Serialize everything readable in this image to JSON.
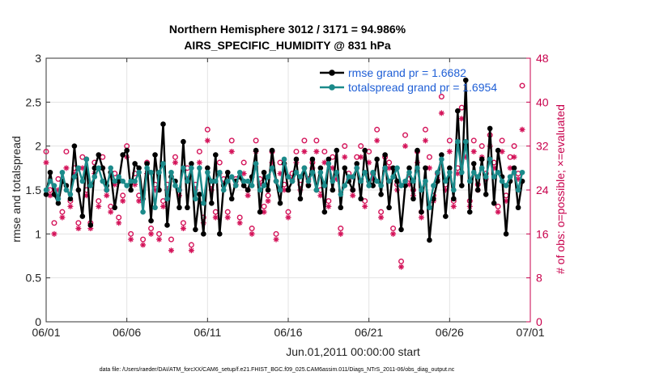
{
  "chart_data": {
    "type": "line",
    "title": "Northern Hemisphere 3012 / 3171 = 94.986%",
    "subtitle": "AIRS_SPECIFIC_HUMIDITY @ 831 hPa",
    "xlabel": "Jun.01,2011 00:00:00 start",
    "ylabel": "rmse and totalspread",
    "y2label": "# of obs: o=possible; ×=evaluated",
    "footer": "data file: /Users/raeder/DAI/ATM_forcXX/CAM6_setup/f.e21.FHIST_BGC.f09_025.CAM6assim.011/Diags_NTrS_2011-06/obs_diag_output.nc",
    "xlim": [
      0,
      30
    ],
    "ylim": [
      0,
      3
    ],
    "y2lim": [
      0,
      48
    ],
    "x_ticks": [
      0,
      5,
      10,
      15,
      20,
      25,
      30
    ],
    "x_tick_labels": [
      "06/01",
      "06/06",
      "06/11",
      "06/16",
      "06/21",
      "06/26",
      "07/01"
    ],
    "y_ticks": [
      0,
      0.5,
      1,
      1.5,
      2,
      2.5,
      3
    ],
    "y_tick_labels": [
      "0",
      "0.5",
      "1",
      "1.5",
      "2",
      "2.5",
      "3"
    ],
    "y2_ticks": [
      0,
      8,
      16,
      24,
      32,
      40,
      48
    ],
    "y2_tick_labels": [
      "0",
      "8",
      "16",
      "24",
      "32",
      "40",
      "48"
    ],
    "grid": true,
    "legend_position": "top-right",
    "colors": {
      "rmse": "#000000",
      "totalspread": "#1b8a8a",
      "obs": "#d4145a",
      "legend_text": "#1f5fd6",
      "right_axis": "#c8004c"
    },
    "series": [
      {
        "name": "rmse grand pr = 1.6682",
        "color": "#000000",
        "x": [
          0.0,
          0.25,
          0.5,
          0.75,
          1.0,
          1.25,
          1.5,
          1.75,
          2.0,
          2.25,
          2.5,
          2.75,
          3.0,
          3.25,
          3.5,
          3.75,
          4.0,
          4.25,
          4.5,
          4.75,
          5.0,
          5.25,
          5.5,
          5.75,
          6.0,
          6.25,
          6.5,
          6.75,
          7.0,
          7.25,
          7.5,
          7.75,
          8.0,
          8.25,
          8.5,
          8.75,
          9.0,
          9.25,
          9.5,
          9.75,
          10.0,
          10.25,
          10.5,
          10.75,
          11.0,
          11.25,
          11.5,
          11.75,
          12.0,
          12.25,
          12.5,
          12.75,
          13.0,
          13.25,
          13.5,
          13.75,
          14.0,
          14.25,
          14.5,
          14.75,
          15.0,
          15.25,
          15.5,
          15.75,
          16.0,
          16.25,
          16.5,
          16.75,
          17.0,
          17.25,
          17.5,
          17.75,
          18.0,
          18.25,
          18.5,
          18.75,
          19.0,
          19.25,
          19.5,
          19.75,
          20.0,
          20.25,
          20.5,
          20.75,
          21.0,
          21.25,
          21.5,
          21.75,
          22.0,
          22.25,
          22.5,
          22.75,
          23.0,
          23.25,
          23.5,
          23.75,
          24.0,
          24.25,
          24.5,
          24.75,
          25.0,
          25.25,
          25.5,
          25.75,
          26.0,
          26.25,
          26.5,
          26.75,
          27.0,
          27.25,
          27.5,
          27.75,
          28.0,
          28.25,
          28.5,
          28.75,
          29.0,
          29.25,
          29.5
        ],
        "values": [
          1.45,
          1.7,
          1.45,
          1.35,
          1.6,
          1.55,
          1.4,
          2.0,
          1.5,
          1.2,
          1.85,
          1.1,
          1.75,
          1.9,
          1.75,
          1.55,
          1.7,
          1.3,
          1.6,
          1.9,
          1.95,
          1.5,
          1.8,
          1.75,
          1.4,
          1.8,
          1.15,
          1.9,
          1.5,
          2.25,
          1.1,
          1.65,
          1.6,
          1.3,
          2.05,
          1.3,
          1.8,
          1.05,
          1.45,
          1.0,
          1.75,
          1.35,
          1.9,
          1.0,
          1.55,
          1.7,
          1.4,
          1.6,
          1.65,
          1.55,
          1.5,
          1.65,
          1.95,
          1.25,
          1.7,
          1.5,
          1.95,
          1.6,
          1.35,
          1.8,
          1.5,
          1.6,
          1.85,
          1.4,
          1.75,
          1.55,
          1.85,
          1.5,
          1.75,
          1.25,
          1.85,
          1.5,
          1.95,
          1.3,
          1.75,
          1.6,
          1.5,
          1.8,
          1.4,
          1.95,
          1.6,
          1.55,
          1.85,
          1.45,
          1.9,
          1.3,
          1.75,
          1.6,
          1.05,
          1.55,
          1.75,
          1.4,
          1.95,
          1.25,
          1.75,
          0.93,
          1.4,
          1.6,
          1.9,
          1.2,
          1.75,
          1.4,
          2.4,
          1.55,
          2.75,
          1.25,
          1.8,
          1.5,
          1.85,
          1.45,
          2.2,
          1.35,
          1.95,
          1.65,
          1.0,
          1.6,
          1.75,
          1.3,
          1.6
        ]
      },
      {
        "name": "totalspread grand pr = 1.6954",
        "color": "#1b8a8a",
        "x": [
          0.0,
          0.25,
          0.5,
          0.75,
          1.0,
          1.25,
          1.5,
          1.75,
          2.0,
          2.25,
          2.5,
          2.75,
          3.0,
          3.25,
          3.5,
          3.75,
          4.0,
          4.25,
          4.5,
          4.75,
          5.0,
          5.25,
          5.5,
          5.75,
          6.0,
          6.25,
          6.5,
          6.75,
          7.0,
          7.25,
          7.5,
          7.75,
          8.0,
          8.25,
          8.5,
          8.75,
          9.0,
          9.25,
          9.5,
          9.75,
          10.0,
          10.25,
          10.5,
          10.75,
          11.0,
          11.25,
          11.5,
          11.75,
          12.0,
          12.25,
          12.5,
          12.75,
          13.0,
          13.25,
          13.5,
          13.75,
          14.0,
          14.25,
          14.5,
          14.75,
          15.0,
          15.25,
          15.5,
          15.75,
          16.0,
          16.25,
          16.5,
          16.75,
          17.0,
          17.25,
          17.5,
          17.75,
          18.0,
          18.25,
          18.5,
          18.75,
          19.0,
          19.25,
          19.5,
          19.75,
          20.0,
          20.25,
          20.5,
          20.75,
          21.0,
          21.25,
          21.5,
          21.75,
          22.0,
          22.25,
          22.5,
          22.75,
          23.0,
          23.25,
          23.5,
          23.75,
          24.0,
          24.25,
          24.5,
          24.75,
          25.0,
          25.25,
          25.5,
          25.75,
          26.0,
          26.25,
          26.5,
          26.75,
          27.0,
          27.25,
          27.5,
          27.75,
          28.0,
          28.25,
          28.5,
          28.75,
          29.0,
          29.25,
          29.5
        ],
        "values": [
          1.5,
          1.6,
          1.55,
          1.4,
          1.7,
          1.5,
          1.45,
          1.65,
          1.75,
          1.6,
          1.85,
          1.55,
          1.65,
          1.75,
          1.6,
          1.5,
          1.75,
          1.6,
          1.65,
          1.6,
          1.55,
          1.6,
          1.6,
          1.7,
          1.25,
          1.75,
          1.7,
          1.3,
          1.7,
          1.8,
          1.4,
          1.7,
          1.55,
          1.5,
          1.75,
          1.6,
          1.75,
          1.4,
          1.75,
          1.35,
          1.7,
          1.6,
          1.6,
          1.7,
          1.5,
          1.6,
          1.65,
          1.55,
          1.7,
          1.6,
          1.6,
          1.55,
          1.8,
          1.5,
          1.55,
          1.65,
          1.75,
          1.6,
          1.5,
          1.85,
          1.65,
          1.6,
          1.7,
          1.65,
          1.75,
          1.6,
          1.7,
          1.5,
          1.7,
          1.55,
          1.8,
          1.6,
          1.7,
          1.45,
          1.55,
          1.65,
          1.65,
          1.75,
          1.6,
          1.7,
          1.55,
          1.7,
          1.6,
          1.55,
          1.75,
          1.6,
          1.65,
          1.75,
          1.55,
          1.6,
          1.7,
          1.6,
          1.75,
          1.5,
          1.6,
          1.3,
          1.55,
          1.7,
          1.85,
          1.6,
          1.7,
          1.5,
          2.05,
          1.7,
          2.05,
          1.6,
          1.7,
          1.65,
          1.75,
          1.65,
          1.85,
          1.65,
          1.7,
          1.6,
          1.55,
          1.65,
          1.7,
          1.5,
          1.7
        ]
      }
    ],
    "obs_possible": {
      "name": "# of obs possible",
      "marker": "circle",
      "x": [
        0.0,
        0.25,
        0.5,
        0.75,
        1.0,
        1.25,
        1.5,
        1.75,
        2.0,
        2.25,
        2.5,
        2.75,
        3.0,
        3.25,
        3.5,
        3.75,
        4.0,
        4.25,
        4.5,
        4.75,
        5.0,
        5.25,
        5.5,
        5.75,
        6.0,
        6.25,
        6.5,
        6.75,
        7.0,
        7.25,
        7.5,
        7.75,
        8.0,
        8.25,
        8.5,
        8.75,
        9.0,
        9.25,
        9.5,
        9.75,
        10.0,
        10.25,
        10.5,
        10.75,
        11.0,
        11.25,
        11.5,
        11.75,
        12.0,
        12.25,
        12.5,
        12.75,
        13.0,
        13.25,
        13.5,
        13.75,
        14.0,
        14.25,
        14.5,
        14.75,
        15.0,
        15.25,
        15.5,
        15.75,
        16.0,
        16.25,
        16.5,
        16.75,
        17.0,
        17.25,
        17.5,
        17.75,
        18.0,
        18.25,
        18.5,
        18.75,
        19.0,
        19.25,
        19.5,
        19.75,
        20.0,
        20.25,
        20.5,
        20.75,
        21.0,
        21.25,
        21.5,
        21.75,
        22.0,
        22.25,
        22.5,
        22.75,
        23.0,
        23.25,
        23.5,
        23.75,
        24.0,
        24.25,
        24.5,
        24.75,
        25.0,
        25.25,
        25.5,
        25.75,
        26.0,
        26.25,
        26.5,
        26.75,
        27.0,
        27.25,
        27.5,
        27.75,
        28.0,
        28.25,
        28.5,
        28.75,
        29.0,
        29.25,
        29.5
      ],
      "values": [
        31,
        24,
        18,
        26,
        20,
        31,
        22,
        28,
        18,
        30,
        24,
        18,
        29,
        22,
        30,
        24,
        21,
        27,
        19,
        23,
        32,
        16,
        27,
        23,
        15,
        29,
        17,
        25,
        16,
        22,
        25,
        15,
        30,
        24,
        18,
        28,
        14,
        25,
        31,
        19,
        35,
        25,
        20,
        29,
        26,
        20,
        33,
        26,
        19,
        29,
        24,
        17,
        33,
        26,
        21,
        23,
        31,
        16,
        29,
        25,
        20,
        27,
        31,
        25,
        33,
        26,
        29,
        33,
        24,
        31,
        22,
        30,
        27,
        17,
        32,
        27,
        24,
        30,
        32,
        22,
        31,
        27,
        35,
        20,
        30,
        29,
        17,
        25,
        11,
        34,
        26,
        24,
        31,
        20,
        35,
        30,
        23,
        27,
        41,
        25,
        33,
        22,
        28,
        39,
        32,
        22,
        33,
        25,
        32,
        27,
        34,
        29,
        21,
        33,
        23,
        30,
        32,
        27,
        43
      ]
    },
    "obs_evaluated": {
      "name": "# of obs evaluated",
      "marker": "asterisk",
      "x": [
        0.0,
        0.25,
        0.5,
        0.75,
        1.0,
        1.25,
        1.5,
        1.75,
        2.0,
        2.25,
        2.5,
        2.75,
        3.0,
        3.25,
        3.5,
        3.75,
        4.0,
        4.25,
        4.5,
        4.75,
        5.0,
        5.25,
        5.5,
        5.75,
        6.0,
        6.25,
        6.5,
        6.75,
        7.0,
        7.25,
        7.5,
        7.75,
        8.0,
        8.25,
        8.5,
        8.75,
        9.0,
        9.25,
        9.5,
        9.75,
        10.0,
        10.25,
        10.5,
        10.75,
        11.0,
        11.25,
        11.5,
        11.75,
        12.0,
        12.25,
        12.5,
        12.75,
        13.0,
        13.25,
        13.5,
        13.75,
        14.0,
        14.25,
        14.5,
        14.75,
        15.0,
        15.25,
        15.5,
        15.75,
        16.0,
        16.25,
        16.5,
        16.75,
        17.0,
        17.25,
        17.5,
        17.75,
        18.0,
        18.25,
        18.5,
        18.75,
        19.0,
        19.25,
        19.5,
        19.75,
        20.0,
        20.25,
        20.5,
        20.75,
        21.0,
        21.25,
        21.5,
        21.75,
        22.0,
        22.25,
        22.5,
        22.75,
        23.0,
        23.25,
        23.5,
        23.75,
        24.0,
        24.25,
        24.5,
        24.75,
        25.0,
        25.25,
        25.5,
        25.75,
        26.0,
        26.25,
        26.5,
        26.75,
        27.0,
        27.25,
        27.5,
        27.75,
        28.0,
        28.25,
        28.5,
        28.75,
        29.0,
        29.25,
        29.5
      ],
      "values": [
        29,
        23,
        16,
        24,
        19,
        28,
        21,
        27,
        17,
        28,
        23,
        17,
        27,
        21,
        28,
        23,
        20,
        25,
        18,
        22,
        30,
        15,
        25,
        22,
        14,
        27,
        16,
        24,
        15,
        21,
        24,
        13,
        29,
        23,
        17,
        26,
        13,
        24,
        29,
        18,
        33,
        24,
        19,
        27,
        25,
        19,
        31,
        25,
        18,
        27,
        23,
        16,
        31,
        25,
        20,
        22,
        29,
        15,
        27,
        24,
        19,
        26,
        29,
        24,
        31,
        25,
        28,
        31,
        23,
        29,
        21,
        28,
        26,
        16,
        30,
        26,
        23,
        28,
        30,
        21,
        29,
        26,
        33,
        19,
        28,
        28,
        16,
        24,
        10,
        32,
        25,
        23,
        29,
        19,
        33,
        28,
        22,
        26,
        38,
        24,
        31,
        21,
        27,
        37,
        30,
        21,
        31,
        24,
        30,
        26,
        32,
        28,
        20,
        31,
        22,
        28,
        30,
        26,
        35
      ]
    }
  }
}
